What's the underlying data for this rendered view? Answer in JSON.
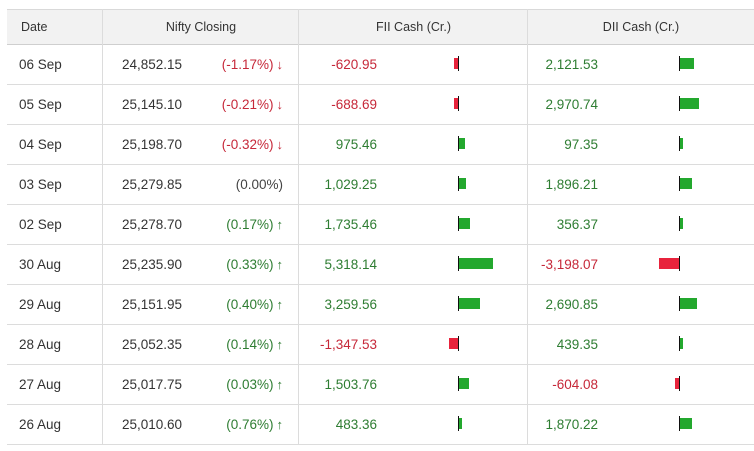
{
  "header": {
    "date": "Date",
    "nifty": "Nifty Closing",
    "fii": "FII Cash (Cr.)",
    "dii": "DII Cash (Cr.)"
  },
  "colors": {
    "positive": "#2e7d32",
    "negative": "#c62839",
    "bar_positive": "#23a82e",
    "bar_negative": "#e8233c"
  },
  "rows": [
    {
      "date": "06 Sep",
      "nifty": "24,852.15",
      "change": "(-1.17%)",
      "dir": "down",
      "fii": "-620.95",
      "fii_val": -620.95,
      "dii": "2,121.53",
      "dii_val": 2121.53
    },
    {
      "date": "05 Sep",
      "nifty": "25,145.10",
      "change": "(-0.21%)",
      "dir": "down",
      "fii": "-688.69",
      "fii_val": -688.69,
      "dii": "2,970.74",
      "dii_val": 2970.74
    },
    {
      "date": "04 Sep",
      "nifty": "25,198.70",
      "change": "(-0.32%)",
      "dir": "down",
      "fii": "975.46",
      "fii_val": 975.46,
      "dii": "97.35",
      "dii_val": 97.35
    },
    {
      "date": "03 Sep",
      "nifty": "25,279.85",
      "change": "(0.00%)",
      "dir": "none",
      "fii": "1,029.25",
      "fii_val": 1029.25,
      "dii": "1,896.21",
      "dii_val": 1896.21
    },
    {
      "date": "02 Sep",
      "nifty": "25,278.70",
      "change": "(0.17%)",
      "dir": "up",
      "fii": "1,735.46",
      "fii_val": 1735.46,
      "dii": "356.37",
      "dii_val": 356.37
    },
    {
      "date": "30 Aug",
      "nifty": "25,235.90",
      "change": "(0.33%)",
      "dir": "up",
      "fii": "5,318.14",
      "fii_val": 5318.14,
      "dii": "-3,198.07",
      "dii_val": -3198.07
    },
    {
      "date": "29 Aug",
      "nifty": "25,151.95",
      "change": "(0.40%)",
      "dir": "up",
      "fii": "3,259.56",
      "fii_val": 3259.56,
      "dii": "2,690.85",
      "dii_val": 2690.85
    },
    {
      "date": "28 Aug",
      "nifty": "25,052.35",
      "change": "(0.14%)",
      "dir": "up",
      "fii": "-1,347.53",
      "fii_val": -1347.53,
      "dii": "439.35",
      "dii_val": 439.35
    },
    {
      "date": "27 Aug",
      "nifty": "25,017.75",
      "change": "(0.03%)",
      "dir": "up",
      "fii": "1,503.76",
      "fii_val": 1503.76,
      "dii": "-604.08",
      "dii_val": -604.08
    },
    {
      "date": "26 Aug",
      "nifty": "25,010.60",
      "change": "(0.76%)",
      "dir": "up",
      "fii": "483.36",
      "fii_val": 483.36,
      "dii": "1,870.22",
      "dii_val": 1870.22
    }
  ]
}
